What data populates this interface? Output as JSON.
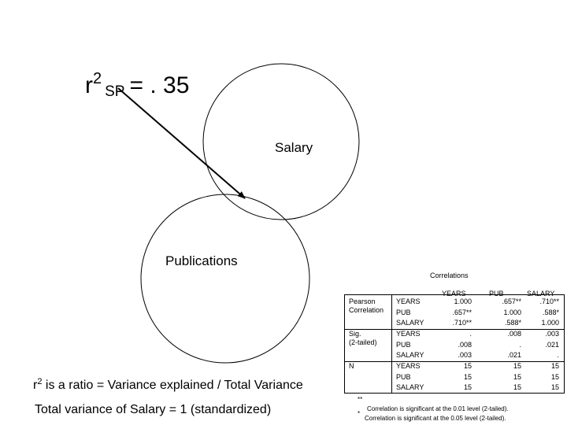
{
  "formula": {
    "base": "r",
    "exponent": "2",
    "subscript": "SP",
    "rest": "= . 35"
  },
  "labels": {
    "salary": "Salary",
    "publications": "Publications"
  },
  "ratio": {
    "prefix": "r",
    "exponent": "2",
    "text": " is a ratio = Variance explained / Total Variance"
  },
  "total": "Total variance of Salary = 1 (standardized)",
  "correlations": {
    "title": "Correlations",
    "columns": [
      "YEARS",
      "PUB",
      "SALARY"
    ],
    "groups": [
      {
        "label_lines": [
          "Pearson",
          "Correlation"
        ],
        "rows": [
          {
            "var": "YEARS",
            "values": [
              "1.000",
              ".657**",
              ".710**"
            ]
          },
          {
            "var": "PUB",
            "values": [
              ".657**",
              "1.000",
              ".588*"
            ]
          },
          {
            "var": "SALARY",
            "values": [
              ".710**",
              ".588*",
              "1.000"
            ]
          }
        ]
      },
      {
        "label_lines": [
          "Sig.",
          "(2-tailed)"
        ],
        "rows": [
          {
            "var": "YEARS",
            "values": [
              ".",
              ".008",
              ".003"
            ]
          },
          {
            "var": "PUB",
            "values": [
              ".008",
              ".",
              ".021"
            ]
          },
          {
            "var": "SALARY",
            "values": [
              ".003",
              ".021",
              "."
            ]
          }
        ]
      },
      {
        "label_lines": [
          "N"
        ],
        "rows": [
          {
            "var": "YEARS",
            "values": [
              "15",
              "15",
              "15"
            ]
          },
          {
            "var": "PUB",
            "values": [
              "15",
              "15",
              "15"
            ]
          },
          {
            "var": "SALARY",
            "values": [
              "15",
              "15",
              "15"
            ]
          }
        ]
      }
    ],
    "footnotes": [
      {
        "mark": "**",
        "text": "Correlation is significant at the 0.01 level (2-tailed)."
      },
      {
        "mark": "*",
        "text": "Correlation is significant at the 0.05 level (2-tailed)."
      }
    ]
  }
}
